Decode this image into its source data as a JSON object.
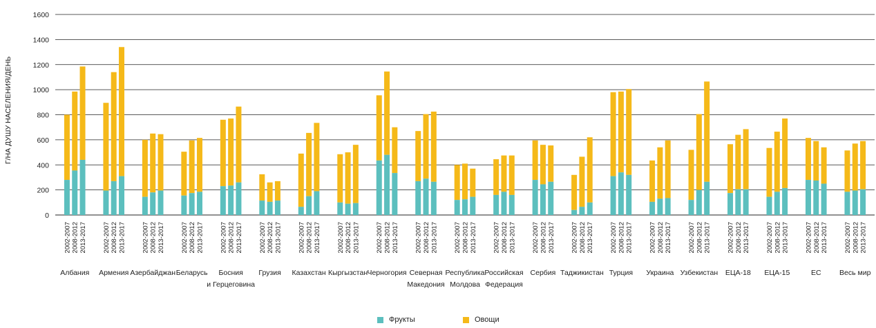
{
  "chart_data": {
    "type": "bar",
    "stacked": true,
    "ylabel": "Г/НА ДУШУ НАСЕЛЕНИЯ/ДЕНЬ",
    "ylim": [
      0,
      1600
    ],
    "yticks": [
      0,
      200,
      400,
      600,
      800,
      1000,
      1200,
      1400,
      1600
    ],
    "grid": true,
    "legend_position": "bottom",
    "periods": [
      "2002-2007",
      "2008-2012",
      "2013-2017"
    ],
    "groups": [
      {
        "label": [
          "Албания"
        ],
        "fruits": [
          280,
          355,
          440
        ],
        "totals": [
          800,
          985,
          1185
        ]
      },
      {
        "label": [
          "Армения"
        ],
        "fruits": [
          195,
          270,
          310
        ],
        "totals": [
          895,
          1140,
          1340
        ]
      },
      {
        "label": [
          "Азербайджан"
        ],
        "fruits": [
          145,
          180,
          195
        ],
        "totals": [
          600,
          650,
          645
        ]
      },
      {
        "label": [
          "Беларусь"
        ],
        "fruits": [
          155,
          175,
          185
        ],
        "totals": [
          505,
          595,
          615
        ]
      },
      {
        "label": [
          "Босния",
          "и Герцеговина"
        ],
        "fruits": [
          230,
          235,
          260
        ],
        "totals": [
          760,
          770,
          865
        ]
      },
      {
        "label": [
          "Грузия"
        ],
        "fruits": [
          115,
          105,
          115
        ],
        "totals": [
          325,
          260,
          270
        ]
      },
      {
        "label": [
          "Казахстан"
        ],
        "fruits": [
          65,
          150,
          190
        ],
        "totals": [
          490,
          655,
          735
        ]
      },
      {
        "label": [
          "Кыргызстан"
        ],
        "fruits": [
          100,
          90,
          95
        ],
        "totals": [
          485,
          500,
          560
        ]
      },
      {
        "label": [
          "Черногория"
        ],
        "fruits": [
          435,
          480,
          335
        ],
        "totals": [
          955,
          1145,
          700
        ]
      },
      {
        "label": [
          "Северная",
          "Македония"
        ],
        "fruits": [
          270,
          290,
          265
        ],
        "totals": [
          670,
          805,
          825
        ]
      },
      {
        "label": [
          "Республика",
          "Молдова"
        ],
        "fruits": [
          120,
          125,
          145
        ],
        "totals": [
          400,
          410,
          370
        ]
      },
      {
        "label": [
          "Российская",
          "Федерация"
        ],
        "fruits": [
          160,
          185,
          160
        ],
        "totals": [
          445,
          475,
          475
        ]
      },
      {
        "label": [
          "Сербия"
        ],
        "fruits": [
          280,
          245,
          265
        ],
        "totals": [
          595,
          560,
          555
        ]
      },
      {
        "label": [
          "Таджикистан"
        ],
        "fruits": [
          40,
          65,
          100
        ],
        "totals": [
          320,
          465,
          620
        ]
      },
      {
        "label": [
          "Турция"
        ],
        "fruits": [
          310,
          340,
          320
        ],
        "totals": [
          980,
          985,
          1005
        ]
      },
      {
        "label": [
          "Украина"
        ],
        "fruits": [
          105,
          130,
          135
        ],
        "totals": [
          435,
          540,
          595
        ]
      },
      {
        "label": [
          "Узбекистан"
        ],
        "fruits": [
          120,
          200,
          265
        ],
        "totals": [
          520,
          805,
          1065
        ]
      },
      {
        "label": [
          "ЕЦА-18"
        ],
        "fruits": [
          175,
          205,
          205
        ],
        "totals": [
          565,
          640,
          685
        ]
      },
      {
        "label": [
          "ЕЦА-15"
        ],
        "fruits": [
          145,
          185,
          215
        ],
        "totals": [
          535,
          665,
          770
        ]
      },
      {
        "label": [
          "ЕС"
        ],
        "fruits": [
          280,
          275,
          250
        ],
        "totals": [
          615,
          590,
          540
        ]
      },
      {
        "label": [
          "Весь мир"
        ],
        "fruits": [
          185,
          195,
          205
        ],
        "totals": [
          515,
          570,
          590
        ]
      }
    ],
    "series": [
      {
        "name": "Фрукты",
        "color": "#5cbfbe"
      },
      {
        "name": "Овощи",
        "color": "#f5b919"
      }
    ]
  },
  "colors": {
    "fruits": "#5cbfbe",
    "vegetables": "#f5b919",
    "grid": "#222222",
    "text": "#222222"
  },
  "legend": {
    "fruits_label": "Фрукты",
    "vegetables_label": "Овощи"
  }
}
